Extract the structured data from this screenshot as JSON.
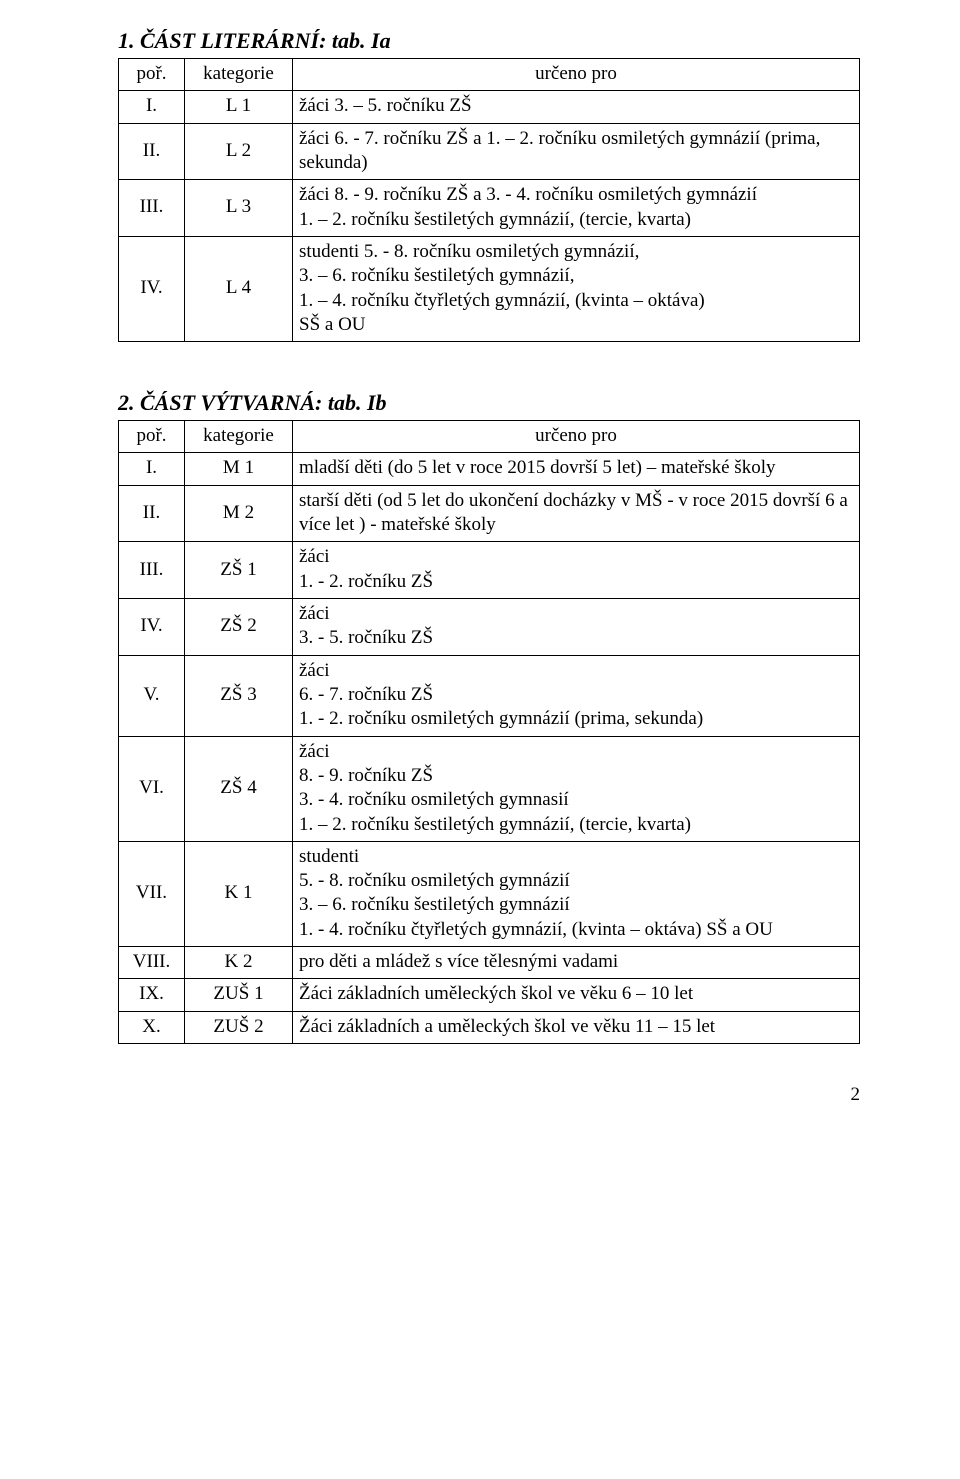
{
  "section1": {
    "title": "1. ČÁST LITERÁRNÍ: tab. Ia",
    "header": {
      "por": "poř.",
      "kat": "kategorie",
      "urceno": "určeno pro"
    },
    "rows": [
      {
        "por": "I.",
        "kat": "L 1",
        "urceno": "žáci 3. – 5. ročníku ZŠ"
      },
      {
        "por": "II.",
        "kat": "L 2",
        "urceno": "žáci 6. - 7. ročníku ZŠ a 1. – 2. ročníku osmiletých gymnázií (prima, sekunda)"
      },
      {
        "por": "III.",
        "kat": "L 3",
        "urceno": "žáci 8. - 9. ročníku ZŠ a 3. - 4. ročníku osmiletých gymnázií\n   1. – 2. ročníku šestiletých gymnázií, (tercie, kvarta)"
      },
      {
        "por": "IV.",
        "kat": "L 4",
        "urceno": "studenti 5. - 8. ročníku osmiletých gymnázií,\n   3. – 6. ročníku šestiletých gymnázií,\n   1. – 4. ročníku čtyřletých gymnázií, (kvinta – oktáva)\nSŠ a OU"
      }
    ]
  },
  "section2": {
    "title": "2. ČÁST VÝTVARNÁ: tab. Ib",
    "header": {
      "por": "poř.",
      "kat": "kategorie",
      "urceno": "určeno pro"
    },
    "rows": [
      {
        "por": "I.",
        "kat": "M 1",
        "urceno": "mladší děti (do 5 let v roce 2015 dovrší 5 let) – mateřské školy"
      },
      {
        "por": "II.",
        "kat": "M 2",
        "urceno": "starší děti (od 5 let do ukončení docházky v MŠ - v roce 2015 dovrší 6 a více let ) - mateřské školy"
      },
      {
        "por": "III.",
        "kat": "ZŠ 1",
        "urceno": "žáci\n1. - 2. ročníku ZŠ"
      },
      {
        "por": "IV.",
        "kat": "ZŠ 2",
        "urceno": "žáci\n3. - 5. ročníku ZŠ"
      },
      {
        "por": "V.",
        "kat": "ZŠ 3",
        "urceno": "žáci\n6. - 7. ročníku ZŠ\n1. - 2. ročníku osmiletých gymnázií (prima, sekunda)"
      },
      {
        "por": "VI.",
        "kat": "ZŠ 4",
        "urceno": "žáci\n8. - 9. ročníku ZŠ\n3. - 4. ročníku osmiletých gymnasií\n1. – 2. ročníku šestiletých gymnázií, (tercie, kvarta)"
      },
      {
        "por": "VII.",
        "kat": "K 1",
        "urceno": "studenti\n5. - 8. ročníku osmiletých gymnázií\n3. – 6. ročníku šestiletých gymnázií\n1. - 4. ročníku čtyřletých gymnázií, (kvinta – oktáva) SŠ a OU"
      },
      {
        "por": "VIII.",
        "kat": "K 2",
        "urceno": "pro děti a mládež s více tělesnými vadami"
      },
      {
        "por": "IX.",
        "kat": "ZUŠ 1",
        "urceno": "Žáci základních uměleckých škol ve věku 6 – 10 let"
      },
      {
        "por": "X.",
        "kat": "ZUŠ 2",
        "urceno": "Žáci základních a uměleckých škol ve věku 11 – 15 let"
      }
    ]
  },
  "pageNumber": "2"
}
